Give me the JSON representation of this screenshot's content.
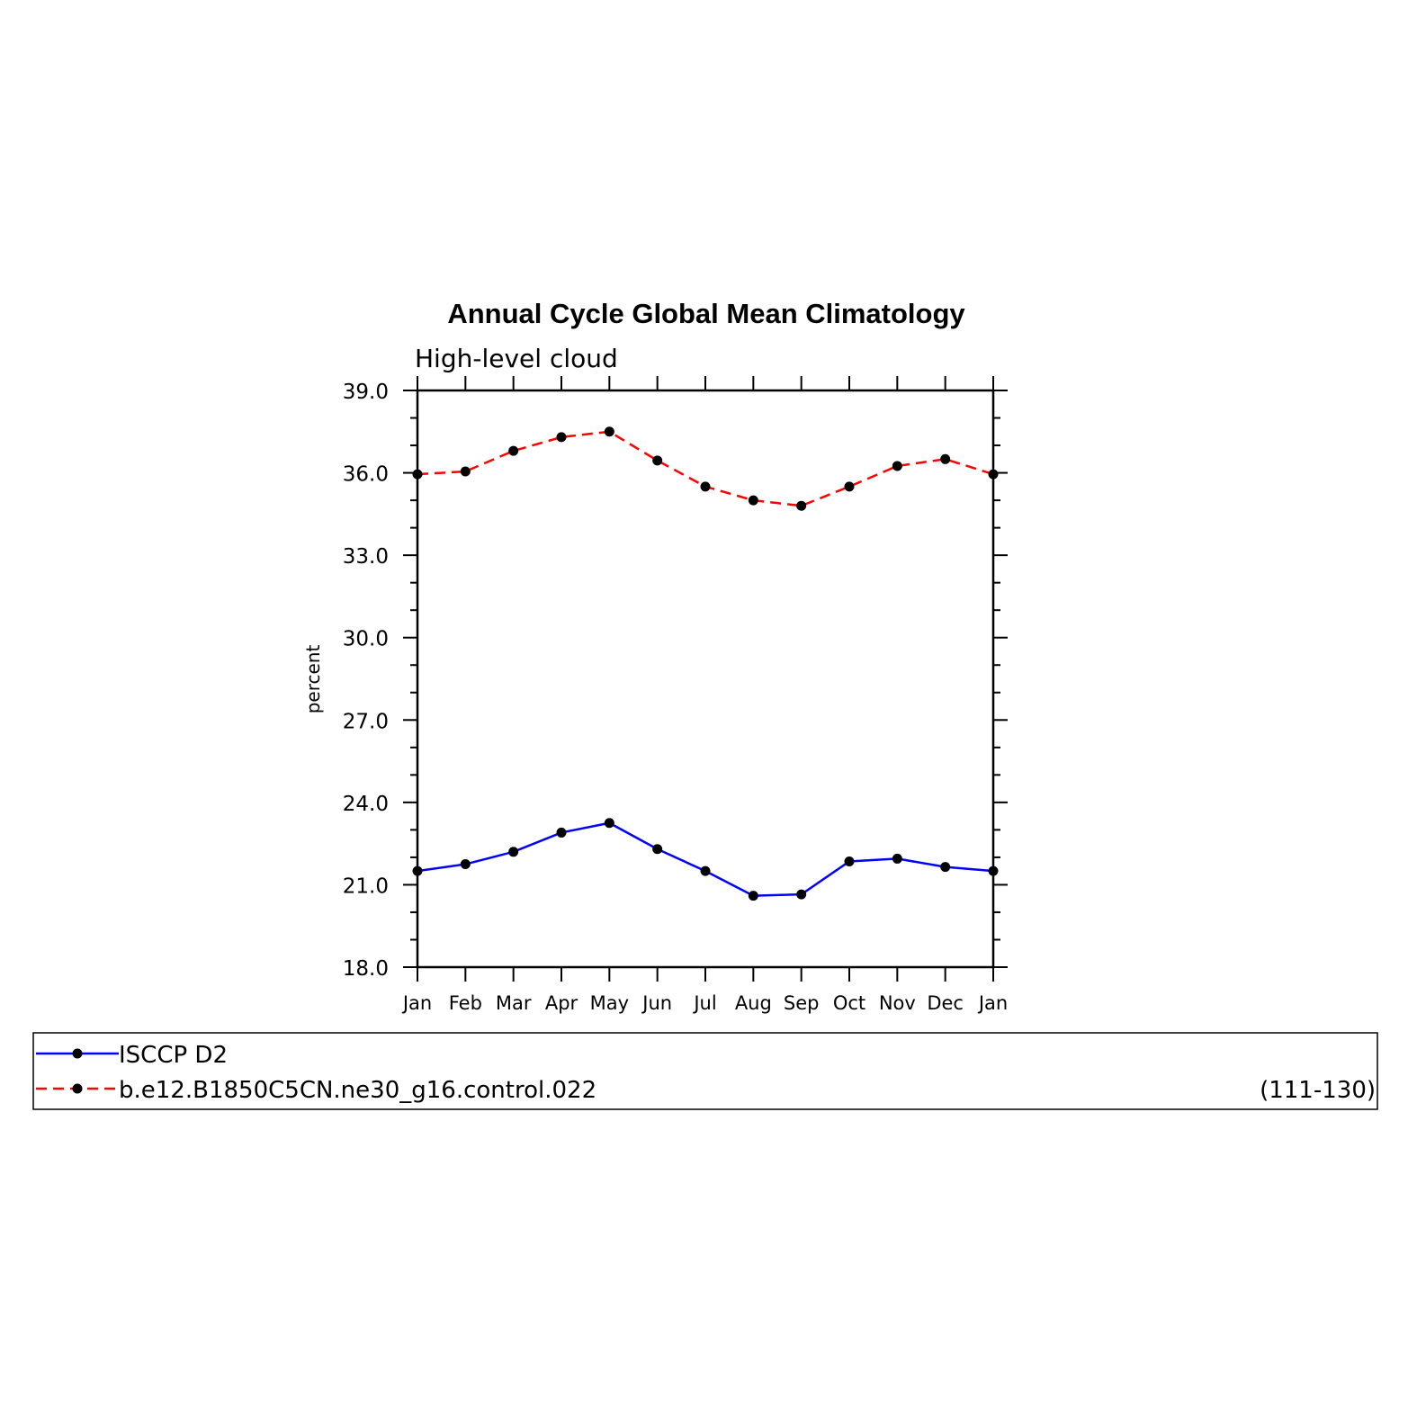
{
  "chart_data": {
    "type": "line",
    "title": "Annual Cycle Global Mean Climatology",
    "subtitle": "High-level cloud",
    "ylabel": "percent",
    "xlabel": "",
    "ylim": [
      18.0,
      39.0
    ],
    "yticks": [
      "18.0",
      "21.0",
      "24.0",
      "27.0",
      "30.0",
      "33.0",
      "36.0",
      "39.0"
    ],
    "categories": [
      "Jan",
      "Feb",
      "Mar",
      "Apr",
      "May",
      "Jun",
      "Jul",
      "Aug",
      "Sep",
      "Oct",
      "Nov",
      "Dec",
      "Jan"
    ],
    "series": [
      {
        "name": "ISCCP D2",
        "color": "#0000ff",
        "dash": "solid",
        "marker": "filled-circle",
        "values": [
          21.5,
          21.75,
          22.2,
          22.9,
          23.25,
          22.3,
          21.5,
          20.6,
          20.65,
          21.85,
          21.95,
          21.65,
          21.5
        ]
      },
      {
        "name": "b.e12.B1850C5CN.ne30_g16.control.022",
        "color": "#ff0000",
        "dash": "dashed",
        "marker": "filled-circle",
        "values": [
          35.95,
          36.05,
          36.8,
          37.3,
          37.5,
          36.45,
          35.5,
          35.0,
          34.8,
          35.5,
          36.25,
          36.5,
          35.95
        ]
      }
    ],
    "legend": {
      "placement": "bottom",
      "entries": [
        "ISCCP D2",
        "b.e12.B1850C5CN.ne30_g16.control.022"
      ],
      "years": "(111-130)"
    },
    "grid": false
  }
}
